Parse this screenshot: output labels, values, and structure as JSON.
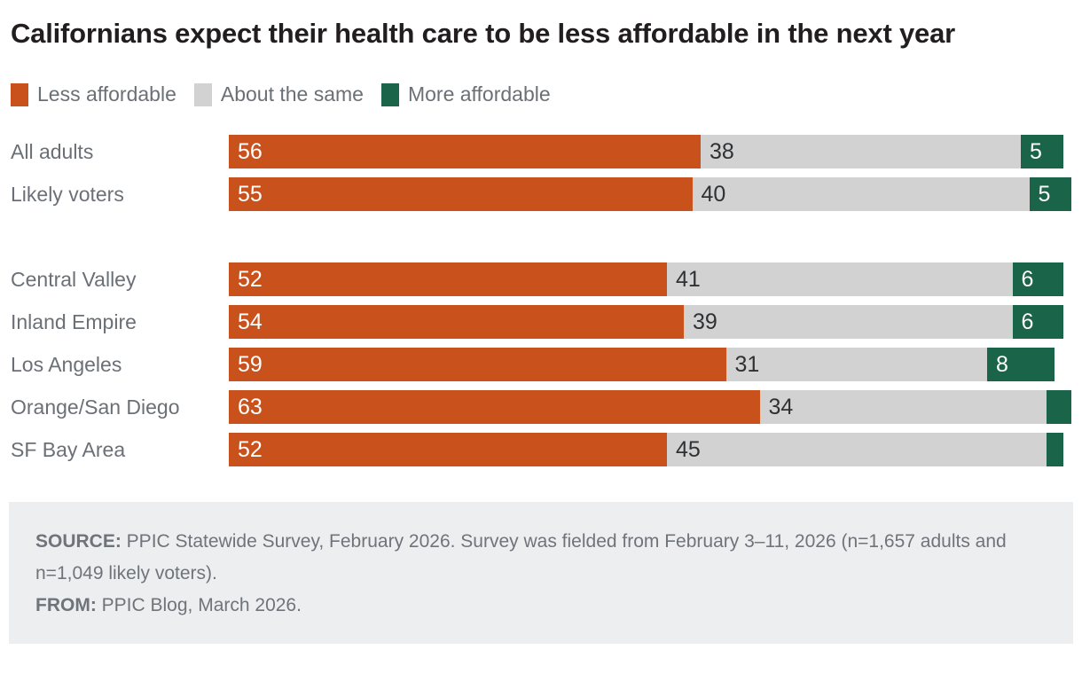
{
  "title": "Californians expect their health care to be less affordable in the next year",
  "legend": [
    {
      "label": "Less affordable",
      "color": "#c8511c"
    },
    {
      "label": "About the same",
      "color": "#d2d2d2"
    },
    {
      "label": "More affordable",
      "color": "#1a6449"
    }
  ],
  "chart_data": {
    "type": "bar",
    "orientation": "horizontal",
    "stacked": true,
    "unit": "percent",
    "xlim": [
      0,
      100
    ],
    "grid": false,
    "legend_position": "top-left",
    "series_names": [
      "Less affordable",
      "About the same",
      "More affordable"
    ],
    "colors": {
      "less_affordable": "#c8511c",
      "about_the_same": "#d2d2d2",
      "more_affordable": "#1a6449"
    },
    "groups": [
      {
        "rows": [
          {
            "label": "All adults",
            "values": [
              56,
              38,
              5
            ],
            "display": [
              "56",
              "38",
              "5"
            ]
          },
          {
            "label": "Likely voters",
            "values": [
              55,
              40,
              5
            ],
            "display": [
              "55",
              "40",
              "5"
            ]
          }
        ]
      },
      {
        "rows": [
          {
            "label": "Central Valley",
            "values": [
              52,
              41,
              6
            ],
            "display": [
              "52",
              "41",
              "6"
            ]
          },
          {
            "label": "Inland Empire",
            "values": [
              54,
              39,
              6
            ],
            "display": [
              "54",
              "39",
              "6"
            ]
          },
          {
            "label": "Los Angeles",
            "values": [
              59,
              31,
              8
            ],
            "display": [
              "59",
              "31",
              "8"
            ]
          },
          {
            "label": "Orange/San Diego",
            "values": [
              63,
              34,
              3
            ],
            "display": [
              "63",
              "34",
              ""
            ]
          },
          {
            "label": "SF Bay Area",
            "values": [
              52,
              45,
              2
            ],
            "display": [
              "52",
              "45",
              ""
            ]
          }
        ]
      }
    ]
  },
  "footer": {
    "source_label": "SOURCE:",
    "source_text": " PPIC Statewide Survey, February 2026. Survey was fielded from February 3–11, 2026 (n=1,657 adults and n=1,049 likely voters).",
    "from_label": "FROM:",
    "from_text": " PPIC Blog, March 2026."
  }
}
